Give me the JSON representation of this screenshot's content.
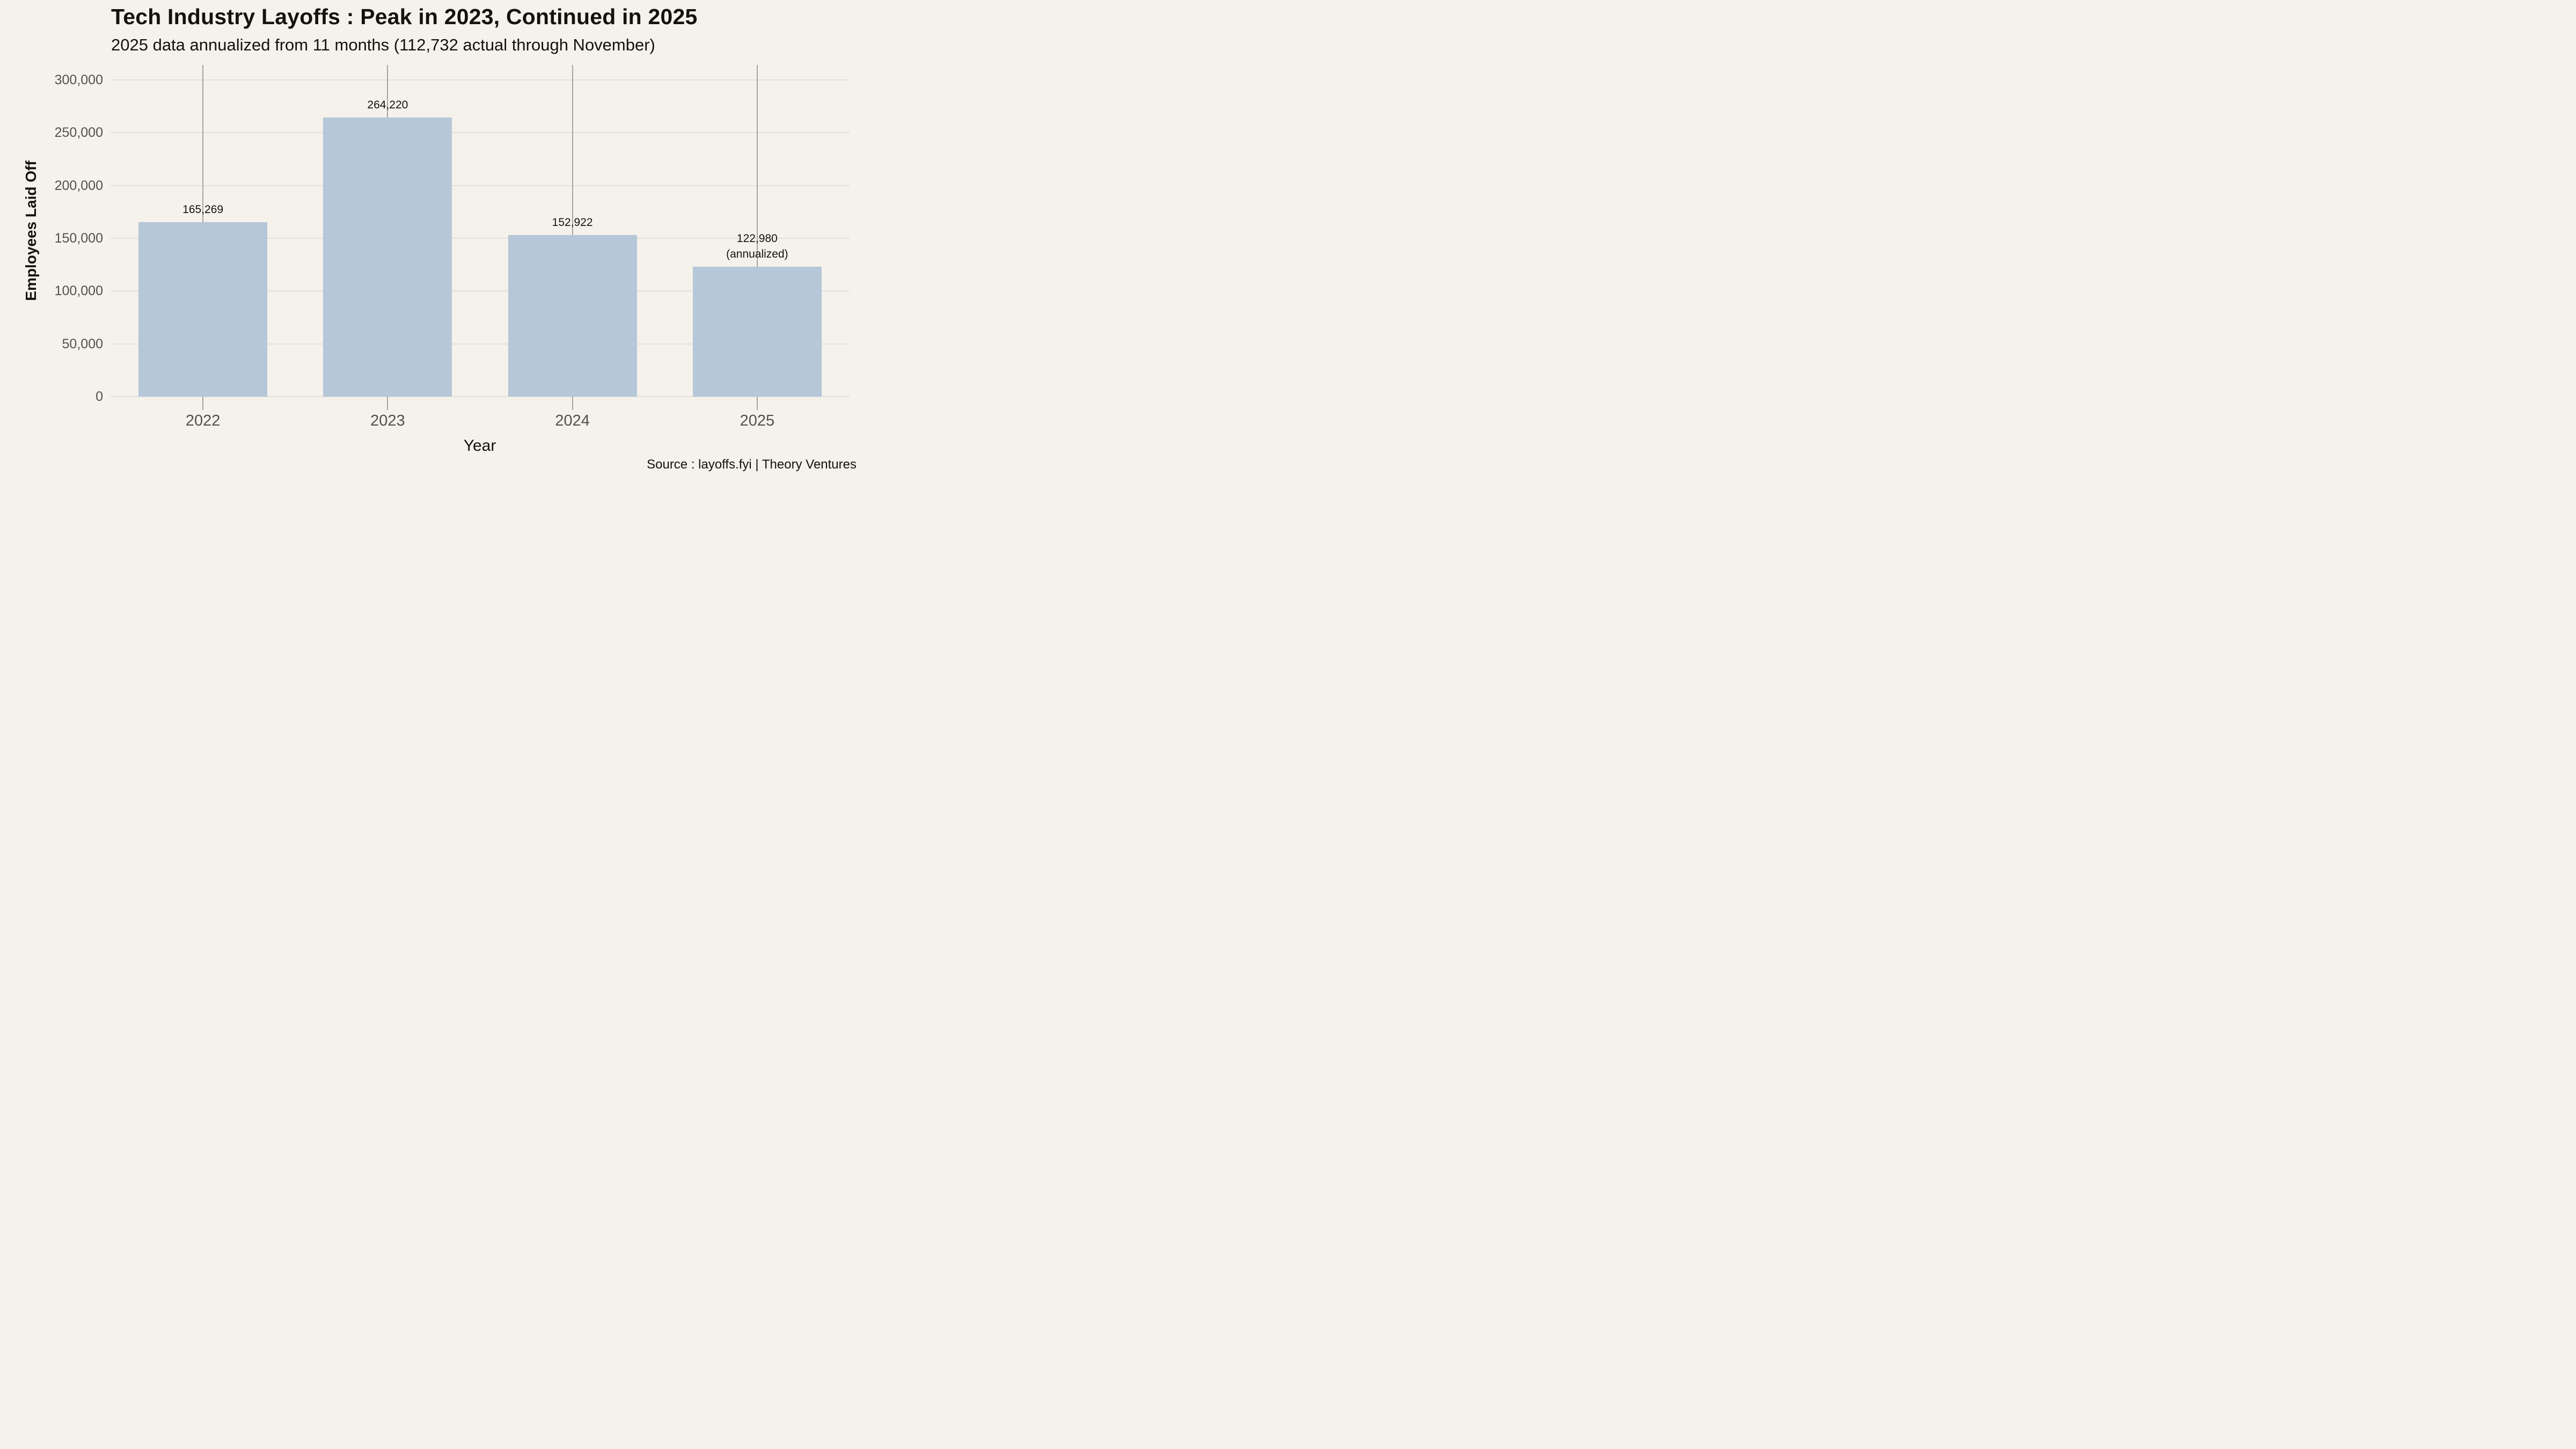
{
  "header": {
    "title": "Tech Industry Layoffs : Peak in 2023, Continued in 2025",
    "subtitle": "2025 data annualized from 11 months (112,732 actual through November)"
  },
  "footer": {
    "source": "Source : layoffs.fyi | Theory Ventures"
  },
  "colors": {
    "background": "#f5f1eb",
    "bar_fill": "#b5c7d8",
    "h_gridline": "#e3e1dd",
    "v_gridline": "#a8a5a0",
    "tick_label": "#54514d",
    "text": "#14120f"
  },
  "chart_data": {
    "type": "bar",
    "title": "Tech Industry Layoffs : Peak in 2023, Continued in 2025",
    "subtitle": "2025 data annualized from 11 months (112,732 actual through November)",
    "xlabel": "Year",
    "ylabel": "Employees Laid Off",
    "categories": [
      "2022",
      "2023",
      "2024",
      "2025"
    ],
    "values": [
      165269,
      264220,
      152922,
      122980
    ],
    "bar_value_labels": [
      "165,269",
      "264,220",
      "152,922",
      "122,980\n(annualized)"
    ],
    "note_2025": "annualized; 112,732 actual through November",
    "ylim": [
      0,
      300000
    ],
    "yticks": [
      0,
      50000,
      100000,
      150000,
      200000,
      250000,
      300000
    ],
    "ytick_labels": [
      "0",
      "50,000",
      "100,000",
      "150,000",
      "200,000",
      "250,000",
      "300,000"
    ],
    "grid": "horizontal-and-vertical",
    "legend_position": "none",
    "source": "Source : layoffs.fyi | Theory Ventures"
  }
}
